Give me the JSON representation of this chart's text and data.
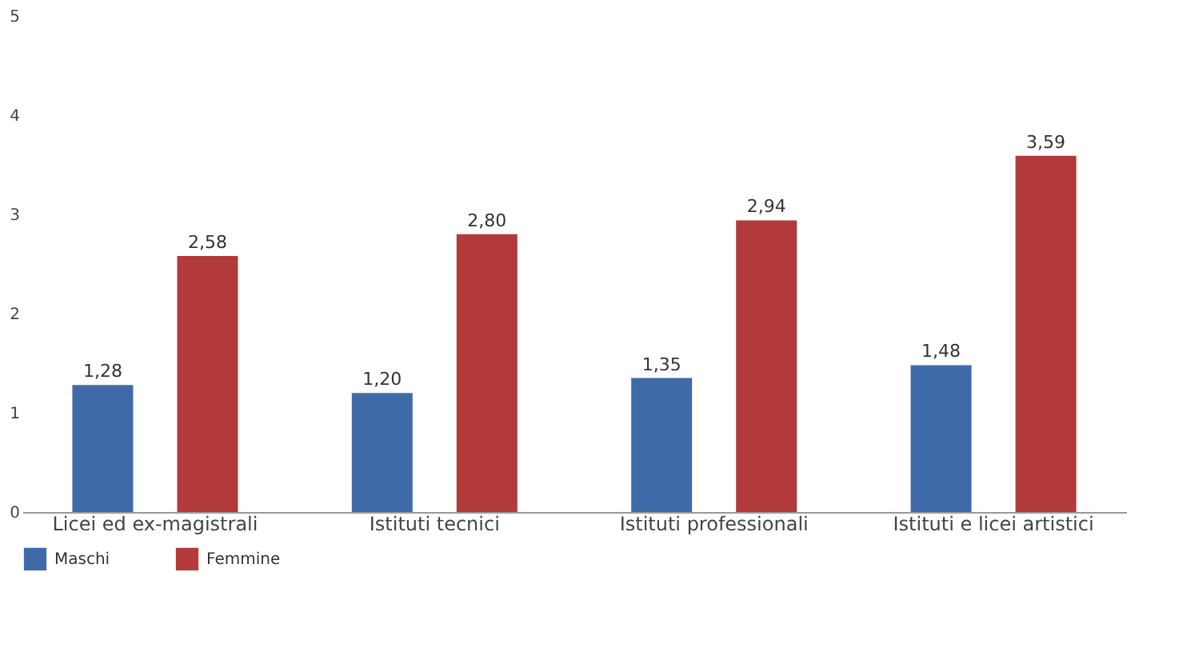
{
  "chart_data": {
    "type": "bar",
    "categories": [
      "Licei ed ex-magistrali",
      "Istituti tecnici",
      "Istituti professionali",
      "Istituti e licei artistici"
    ],
    "series": [
      {
        "name": "Maschi",
        "color": "#3f6aa8",
        "values": [
          1.28,
          1.2,
          1.35,
          1.48
        ],
        "value_labels": [
          "1,28",
          "1,20",
          "1,35",
          "1,48"
        ]
      },
      {
        "name": "Femmine",
        "color": "#b23a3a",
        "values": [
          2.58,
          2.8,
          2.94,
          3.59
        ],
        "value_labels": [
          "2,58",
          "2,80",
          "2,94",
          "3,59"
        ]
      }
    ],
    "ylim": [
      0,
      5
    ],
    "yticks": [
      0,
      1,
      2,
      3,
      4,
      5
    ],
    "grid": false,
    "legend": "bottom left"
  }
}
